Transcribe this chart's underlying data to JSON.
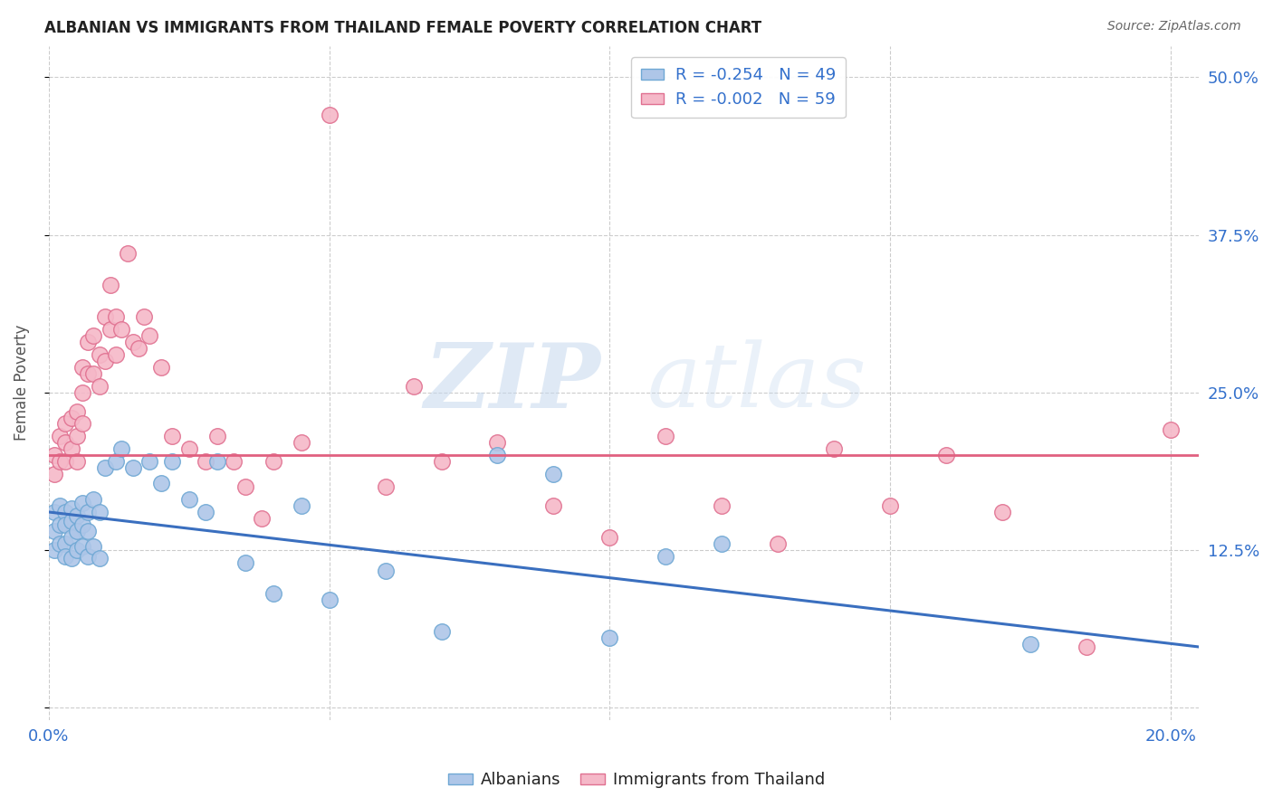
{
  "title": "ALBANIAN VS IMMIGRANTS FROM THAILAND FEMALE POVERTY CORRELATION CHART",
  "source": "Source: ZipAtlas.com",
  "ylabel": "Female Poverty",
  "xlim": [
    0.0,
    0.205
  ],
  "ylim": [
    -0.01,
    0.525
  ],
  "yticks": [
    0.0,
    0.125,
    0.25,
    0.375,
    0.5
  ],
  "ytick_labels": [
    "",
    "12.5%",
    "25.0%",
    "37.5%",
    "50.0%"
  ],
  "xticks": [
    0.0,
    0.05,
    0.1,
    0.15,
    0.2
  ],
  "xtick_labels": [
    "0.0%",
    "",
    "",
    "",
    "20.0%"
  ],
  "gridline_color": "#cccccc",
  "background_color": "#ffffff",
  "watermark_zip": "ZIP",
  "watermark_atlas": "atlas",
  "albanians_color": "#aec6e8",
  "albanians_edge": "#6fa8d4",
  "thailand_color": "#f5b8c8",
  "thailand_edge": "#e07090",
  "trend_albanian_color": "#3a6fbf",
  "trend_thailand_color": "#e06080",
  "trend_albanian_start_y": 0.155,
  "trend_albanian_end_y": 0.048,
  "trend_thailand_y": 0.2,
  "R_albanian": -0.254,
  "N_albanian": 49,
  "R_thailand": -0.002,
  "N_thailand": 59,
  "albanian_x": [
    0.001,
    0.001,
    0.001,
    0.002,
    0.002,
    0.002,
    0.003,
    0.003,
    0.003,
    0.003,
    0.004,
    0.004,
    0.004,
    0.004,
    0.005,
    0.005,
    0.005,
    0.006,
    0.006,
    0.006,
    0.007,
    0.007,
    0.007,
    0.008,
    0.008,
    0.009,
    0.009,
    0.01,
    0.012,
    0.013,
    0.015,
    0.018,
    0.02,
    0.022,
    0.025,
    0.028,
    0.03,
    0.035,
    0.04,
    0.045,
    0.05,
    0.06,
    0.07,
    0.08,
    0.09,
    0.1,
    0.11,
    0.12,
    0.175
  ],
  "albanian_y": [
    0.155,
    0.14,
    0.125,
    0.16,
    0.145,
    0.13,
    0.155,
    0.145,
    0.13,
    0.12,
    0.158,
    0.148,
    0.135,
    0.118,
    0.152,
    0.14,
    0.125,
    0.162,
    0.145,
    0.128,
    0.155,
    0.14,
    0.12,
    0.165,
    0.128,
    0.155,
    0.118,
    0.19,
    0.195,
    0.205,
    0.19,
    0.195,
    0.178,
    0.195,
    0.165,
    0.155,
    0.195,
    0.115,
    0.09,
    0.16,
    0.085,
    0.108,
    0.06,
    0.2,
    0.185,
    0.055,
    0.12,
    0.13,
    0.05
  ],
  "thailand_x": [
    0.001,
    0.001,
    0.002,
    0.002,
    0.003,
    0.003,
    0.003,
    0.004,
    0.004,
    0.005,
    0.005,
    0.005,
    0.006,
    0.006,
    0.006,
    0.007,
    0.007,
    0.008,
    0.008,
    0.009,
    0.009,
    0.01,
    0.01,
    0.011,
    0.011,
    0.012,
    0.012,
    0.013,
    0.014,
    0.015,
    0.016,
    0.017,
    0.018,
    0.02,
    0.022,
    0.025,
    0.028,
    0.03,
    0.033,
    0.035,
    0.038,
    0.04,
    0.045,
    0.05,
    0.06,
    0.065,
    0.07,
    0.08,
    0.09,
    0.1,
    0.11,
    0.12,
    0.13,
    0.14,
    0.15,
    0.16,
    0.17,
    0.185,
    0.2
  ],
  "thailand_y": [
    0.2,
    0.185,
    0.215,
    0.195,
    0.225,
    0.21,
    0.195,
    0.23,
    0.205,
    0.235,
    0.215,
    0.195,
    0.27,
    0.25,
    0.225,
    0.29,
    0.265,
    0.295,
    0.265,
    0.28,
    0.255,
    0.31,
    0.275,
    0.335,
    0.3,
    0.31,
    0.28,
    0.3,
    0.36,
    0.29,
    0.285,
    0.31,
    0.295,
    0.27,
    0.215,
    0.205,
    0.195,
    0.215,
    0.195,
    0.175,
    0.15,
    0.195,
    0.21,
    0.47,
    0.175,
    0.255,
    0.195,
    0.21,
    0.16,
    0.135,
    0.215,
    0.16,
    0.13,
    0.205,
    0.16,
    0.2,
    0.155,
    0.048,
    0.22
  ]
}
